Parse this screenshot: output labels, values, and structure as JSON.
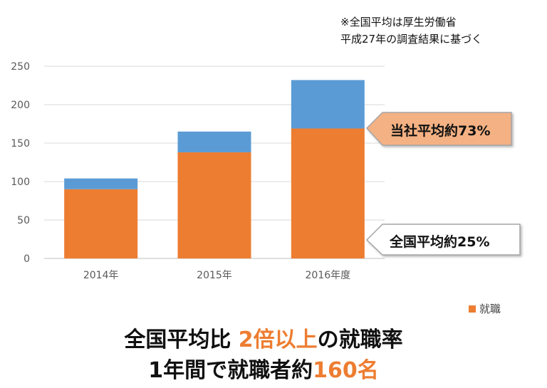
{
  "note": {
    "line1": "※全国平均は厚生労働省",
    "line2": "平成27年の調査結果に基づく"
  },
  "chart_data": {
    "type": "bar",
    "stacked": true,
    "categories": [
      "2014年",
      "2015年",
      "2016年度"
    ],
    "series": [
      {
        "name": "就職",
        "values": [
          90,
          138,
          169
        ],
        "color": "#ED7D31"
      },
      {
        "name": "",
        "values": [
          14,
          27,
          63
        ],
        "color": "#5B9BD5"
      }
    ],
    "ylim": [
      0,
      250
    ],
    "yticks": [
      0,
      50,
      100,
      150,
      200,
      250
    ],
    "grid": true,
    "legend": {
      "position": "bottom-right"
    }
  },
  "callouts": {
    "company": {
      "text": "当社平均約73%",
      "fill": "#F4B183"
    },
    "national": {
      "text": "全国平均約25%",
      "fill": "#FFFFFF"
    }
  },
  "headline": {
    "line1_prefix": "全国平均比 ",
    "line1_accent": "2倍以上",
    "line1_suffix": "の就職率",
    "line2_prefix": "1年間で就職者約",
    "line2_accent": "160名"
  }
}
